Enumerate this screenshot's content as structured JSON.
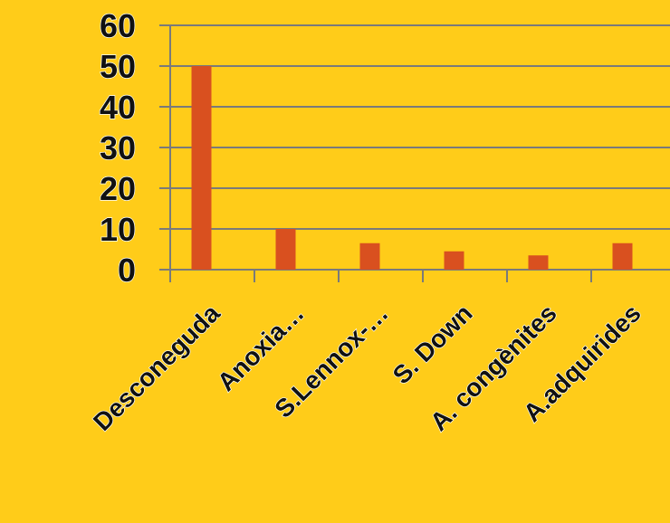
{
  "colors": {
    "background": "#FFCC19",
    "bar": "#D9501F",
    "grid": "#7A7A7A",
    "axis": "#7A7A7A",
    "text": "#111111",
    "text_outline": "#FFFFFF"
  },
  "chart_data": {
    "type": "bar",
    "title": "",
    "xlabel": "",
    "ylabel": "",
    "categories": [
      "Desconeguda",
      "Anoxia…",
      "S.Lennox-…",
      "S. Down",
      "A. congènites",
      "A.adquirides"
    ],
    "values": [
      50,
      10,
      6.5,
      4.5,
      3.5,
      6.5
    ],
    "ylim": [
      0,
      60
    ],
    "yticks": [
      "0",
      "10",
      "20",
      "30",
      "40",
      "50",
      "60"
    ],
    "grid": true,
    "legend": "none"
  }
}
